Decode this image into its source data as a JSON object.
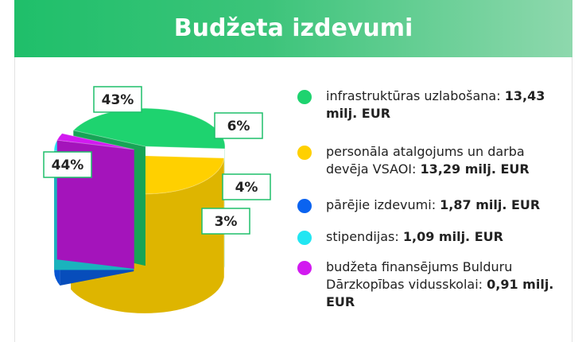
{
  "chart_data": {
    "type": "pie",
    "title": "Budžeta izdevumi",
    "categories": [
      "infrastruktūras uzlabošana:",
      "personāla atalgojums un darba devēja VSAOI:",
      "pārējie izdevumi:",
      "stipendijas:",
      "budžeta finansējums Bulduru Dārzkopības vidusskolai:"
    ],
    "values": [
      44,
      43,
      6,
      4,
      3
    ],
    "value_labels": [
      "44%",
      "43%",
      "6%",
      "4%",
      "3%"
    ],
    "amounts": [
      "13,43 milj. EUR",
      "13,29 milj. EUR",
      "1,87 milj. EUR",
      "1,09 milj. EUR",
      "0,91 milj. EUR"
    ],
    "colors": [
      "#1ed36f",
      "#ffd000",
      "#0a63f0",
      "#22e6f2",
      "#d21af0"
    ]
  }
}
